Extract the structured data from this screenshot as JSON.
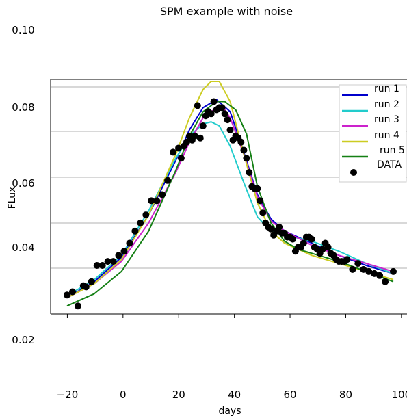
{
  "chart_data": {
    "type": "line",
    "title": "SPM example with noise",
    "xlabel": "days",
    "ylabel": "FLux",
    "xlim": [
      -26,
      102
    ],
    "ylim": [
      0.02,
      0.104
    ],
    "x_ticks": [
      -20,
      0,
      20,
      40,
      60,
      80,
      100
    ],
    "x_tick_labels": [
      "−20",
      "0",
      "20",
      "40",
      "60",
      "80",
      "100"
    ],
    "y_ticks": [
      0.02,
      0.04,
      0.06,
      0.08,
      0.1
    ],
    "y_tick_labels": [
      "0.02",
      "0.04",
      "0.06",
      "0.08",
      "0.10"
    ],
    "grid": "horizontal",
    "legend_placement": "top-right",
    "series": [
      {
        "name": "run 1",
        "color": "#0000cc",
        "x": [
          -20,
          -10,
          0,
          10,
          20,
          25,
          30,
          35,
          40,
          45,
          50,
          55,
          60,
          70,
          80,
          90,
          100
        ],
        "y": [
          0.0305,
          0.0345,
          0.0405,
          0.051,
          0.0645,
          0.072,
          0.0775,
          0.0795,
          0.0765,
          0.0665,
          0.056,
          0.05,
          0.047,
          0.044,
          0.041,
          0.0385,
          0.0365
        ]
      },
      {
        "name": "run 2",
        "color": "#22cccc",
        "x": [
          -20,
          -10,
          0,
          10,
          20,
          25,
          30,
          33,
          36,
          40,
          45,
          50,
          55,
          60,
          70,
          80,
          90,
          100
        ],
        "y": [
          0.031,
          0.035,
          0.041,
          0.052,
          0.065,
          0.0705,
          0.0735,
          0.074,
          0.073,
          0.068,
          0.059,
          0.0505,
          0.047,
          0.046,
          0.0445,
          0.042,
          0.039,
          0.0365
        ]
      },
      {
        "name": "run 3",
        "color": "#cc22cc",
        "x": [
          -20,
          -10,
          0,
          10,
          20,
          25,
          30,
          35,
          38,
          40,
          45,
          50,
          55,
          60,
          70,
          80,
          90,
          100
        ],
        "y": [
          0.0305,
          0.034,
          0.0395,
          0.049,
          0.0615,
          0.069,
          0.075,
          0.0775,
          0.077,
          0.075,
          0.066,
          0.0555,
          0.0495,
          0.047,
          0.0435,
          0.041,
          0.039,
          0.037
        ]
      },
      {
        "name": "run 4",
        "color": "#cccc22",
        "x": [
          -20,
          -10,
          0,
          10,
          20,
          25,
          30,
          33,
          36,
          40,
          45,
          50,
          55,
          60,
          70,
          80,
          90,
          100
        ],
        "y": [
          0.0305,
          0.034,
          0.04,
          0.051,
          0.066,
          0.075,
          0.082,
          0.084,
          0.084,
          0.079,
          0.066,
          0.054,
          0.047,
          0.044,
          0.041,
          0.039,
          0.037,
          0.035
        ]
      },
      {
        "name": "run 5",
        "color": "#158015",
        "x": [
          -20,
          -10,
          0,
          10,
          20,
          25,
          30,
          35,
          38,
          42,
          46,
          50,
          55,
          60,
          65,
          70,
          80,
          90,
          100
        ],
        "y": [
          0.0285,
          0.0315,
          0.037,
          0.047,
          0.062,
          0.0705,
          0.0765,
          0.079,
          0.079,
          0.077,
          0.071,
          0.058,
          0.049,
          0.0445,
          0.0425,
          0.0415,
          0.0395,
          0.037,
          0.0345
        ]
      }
    ],
    "points": {
      "name": "DATA",
      "color": "#000000",
      "x": [
        -20,
        -18,
        -16,
        -14,
        -13,
        -11,
        -9,
        -7,
        -5,
        -3,
        -1,
        1,
        3,
        5,
        7,
        9,
        11,
        13,
        15,
        17,
        19,
        21,
        22,
        23,
        24,
        25,
        26,
        27,
        28,
        29,
        30,
        31,
        32,
        33,
        34,
        35,
        36,
        37,
        38,
        39,
        40,
        41,
        42,
        43,
        44,
        45,
        46,
        47,
        48,
        49,
        50,
        51,
        52,
        53,
        54,
        55,
        56,
        57,
        58,
        59,
        60,
        61,
        62,
        63,
        64,
        65,
        66,
        67,
        68,
        69,
        70,
        71,
        72,
        73,
        74,
        75,
        76,
        77,
        78,
        79,
        80,
        81,
        82,
        83,
        85,
        87,
        89,
        91,
        93,
        95,
        97,
        100
      ],
      "y": [
        0.0312,
        0.032,
        0.0285,
        0.0335,
        0.0332,
        0.0345,
        0.0385,
        0.0385,
        0.0395,
        0.0395,
        0.041,
        0.042,
        0.044,
        0.047,
        0.049,
        0.051,
        0.0545,
        0.0545,
        0.056,
        0.0595,
        0.0665,
        0.0675,
        0.065,
        0.068,
        0.069,
        0.0705,
        0.0695,
        0.0705,
        0.078,
        0.07,
        0.073,
        0.0755,
        0.0765,
        0.076,
        0.079,
        0.077,
        0.0775,
        0.0775,
        0.076,
        0.0745,
        0.072,
        0.0695,
        0.0705,
        0.07,
        0.069,
        0.067,
        0.065,
        0.0615,
        0.058,
        0.0575,
        0.0575,
        0.0545,
        0.0515,
        0.049,
        0.048,
        0.0475,
        0.046,
        0.047,
        0.048,
        0.0465,
        0.0465,
        0.0455,
        0.0455,
        0.045,
        0.042,
        0.043,
        0.043,
        0.044,
        0.0455,
        0.0455,
        0.045,
        0.043,
        0.0425,
        0.0415,
        0.0425,
        0.044,
        0.043,
        0.0415,
        0.041,
        0.04,
        0.0395,
        0.0395,
        0.0395,
        0.04,
        0.0375,
        0.039,
        0.0375,
        0.037,
        0.0365,
        0.036,
        0.0345,
        0.037
      ]
    }
  }
}
